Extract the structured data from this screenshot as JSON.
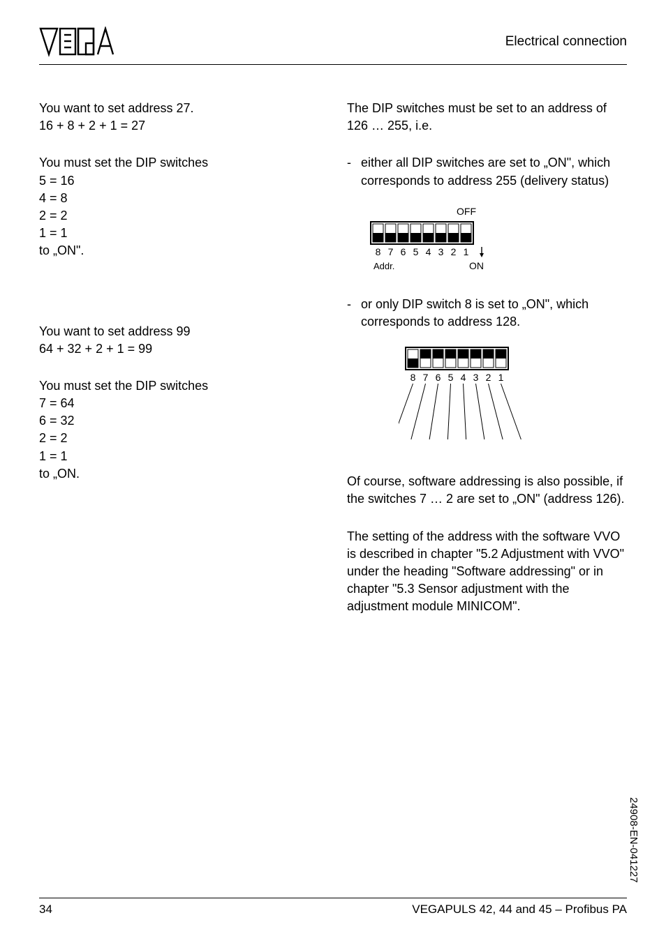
{
  "header": {
    "section_title": "Electrical connection"
  },
  "left": {
    "ex27_line1": "You want to set address 27.",
    "ex27_line2": "16 + 8 + 2 + 1 = 27",
    "ex27_set": "You must set the DIP switches",
    "ex27_s5": "5 = 16",
    "ex27_s4": "4 = 8",
    "ex27_s2": "2 = 2",
    "ex27_s1": "1 = 1",
    "ex27_on": "to „ON\".",
    "ex99_line1": "You want to set address 99",
    "ex99_line2": "64 + 32 + 2 + 1 = 99",
    "ex99_set": "You must set the DIP switches",
    "ex99_s7": "7 = 64",
    "ex99_s6": "6 = 32",
    "ex99_s2": "2 = 2",
    "ex99_s1": "1 = 1",
    "ex99_on": "to „ON."
  },
  "right": {
    "intro": "The DIP switches must be set to an address of 126 … 255, i.e.",
    "bullet1": "either all DIP switches are set to „ON\", which corresponds to address 255 (delivery status)",
    "bullet2": "or only DIP switch 8 is set to „ON\", which corresponds to address 128.",
    "para2": "Of course, software addressing is also possible, if the switches 7 … 2 are set to „ON\" (address 126).",
    "para3": "The setting of the address with the software VVO is described in chapter \"5.2 Adjustment with VVO\" under the heading \"Software addressing\" or in chapter \"5.3 Sensor adjustment with the adjustment module MINICOM\"."
  },
  "fig1": {
    "off_label": "OFF",
    "on_label": "ON",
    "addr_label": "Addr.",
    "digits": [
      "8",
      "7",
      "6",
      "5",
      "4",
      "3",
      "2",
      "1"
    ],
    "switch_width": 15,
    "switch_height": 26,
    "box_stroke": "#000000",
    "fill": "#000000",
    "font_size": 14
  },
  "fig2": {
    "digits": [
      "8",
      "7",
      "6",
      "5",
      "4",
      "3",
      "2",
      "1"
    ],
    "on_index": 0,
    "switch_width": 15,
    "switch_height": 26,
    "box_stroke": "#000000",
    "fill": "#000000",
    "font_size": 14,
    "fan_length": 80
  },
  "footer": {
    "page_num": "34",
    "doc_title": "VEGAPULS 42, 44 and 45 – Profibus PA",
    "doc_id": "24908-EN-041227"
  },
  "colors": {
    "text": "#000000",
    "bg": "#ffffff",
    "rule": "#000000"
  }
}
